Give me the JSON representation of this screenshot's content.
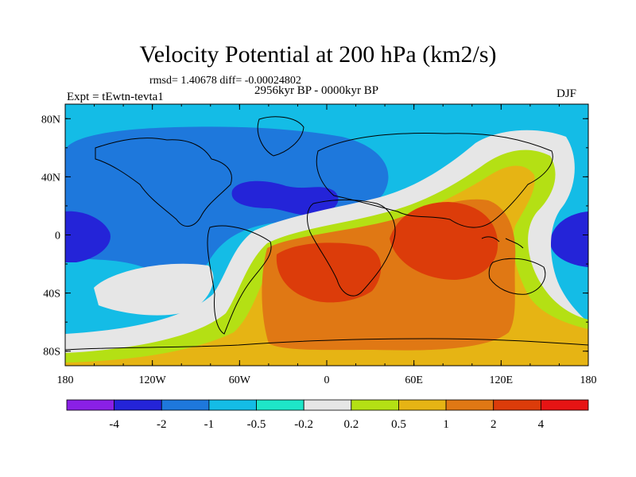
{
  "chart_data": {
    "type": "heatmap",
    "title": "Velocity Potential at 200 hPa (km2/s)",
    "stats_text": "rmsd= 1.40678 diff= -0.00024802",
    "period": "2956kyr BP - 0000kyr BP",
    "experiment": "Expt = tEwtn-tevta1",
    "season": "DJF",
    "x_range": [
      -180,
      180
    ],
    "y_range": [
      -90,
      90
    ],
    "x_ticks": [
      {
        "value": -180,
        "label": "180"
      },
      {
        "value": -120,
        "label": "120W"
      },
      {
        "value": -60,
        "label": "60W"
      },
      {
        "value": 0,
        "label": "0"
      },
      {
        "value": 60,
        "label": "60E"
      },
      {
        "value": 120,
        "label": "120E"
      },
      {
        "value": 180,
        "label": "180"
      }
    ],
    "y_ticks": [
      {
        "value": 80,
        "label": "80N"
      },
      {
        "value": 40,
        "label": "40N"
      },
      {
        "value": 0,
        "label": "0"
      },
      {
        "value": -40,
        "label": "40S"
      },
      {
        "value": -80,
        "label": "80S"
      }
    ],
    "colorbar": {
      "levels": [
        -4,
        -2,
        -1,
        -0.5,
        -0.2,
        0.2,
        0.5,
        1,
        2,
        4
      ],
      "labels": [
        "-4",
        "-2",
        "-1",
        "-0.5",
        "-0.2",
        "0.2",
        "0.5",
        "1",
        "2",
        "4"
      ],
      "colors": [
        "#8a20e6",
        "#2424d8",
        "#1e78dc",
        "#14bce6",
        "#1ee6c8",
        "#e6e6e6",
        "#b4e014",
        "#e6b414",
        "#e07814",
        "#dc3c0a",
        "#e61414"
      ]
    },
    "regions": [
      {
        "name": "global-background",
        "level_index": 3
      },
      {
        "name": "north-atlantic-low",
        "level_index": 2
      },
      {
        "name": "north-atlantic-core",
        "level_index": 1
      },
      {
        "name": "central-pacific-low",
        "level_index": 1
      },
      {
        "name": "west-pacific-low",
        "level_index": 1
      },
      {
        "name": "southeast-pacific-band",
        "level_index": 5
      },
      {
        "name": "zero-band",
        "level_index": 5
      },
      {
        "name": "positive-band",
        "level_index": 6
      },
      {
        "name": "southern-ocean-high",
        "level_index": 7
      },
      {
        "name": "africa-indian-high",
        "level_index": 8
      },
      {
        "name": "africa-core",
        "level_index": 9
      },
      {
        "name": "indian-ocean-core",
        "level_index": 9
      }
    ]
  }
}
